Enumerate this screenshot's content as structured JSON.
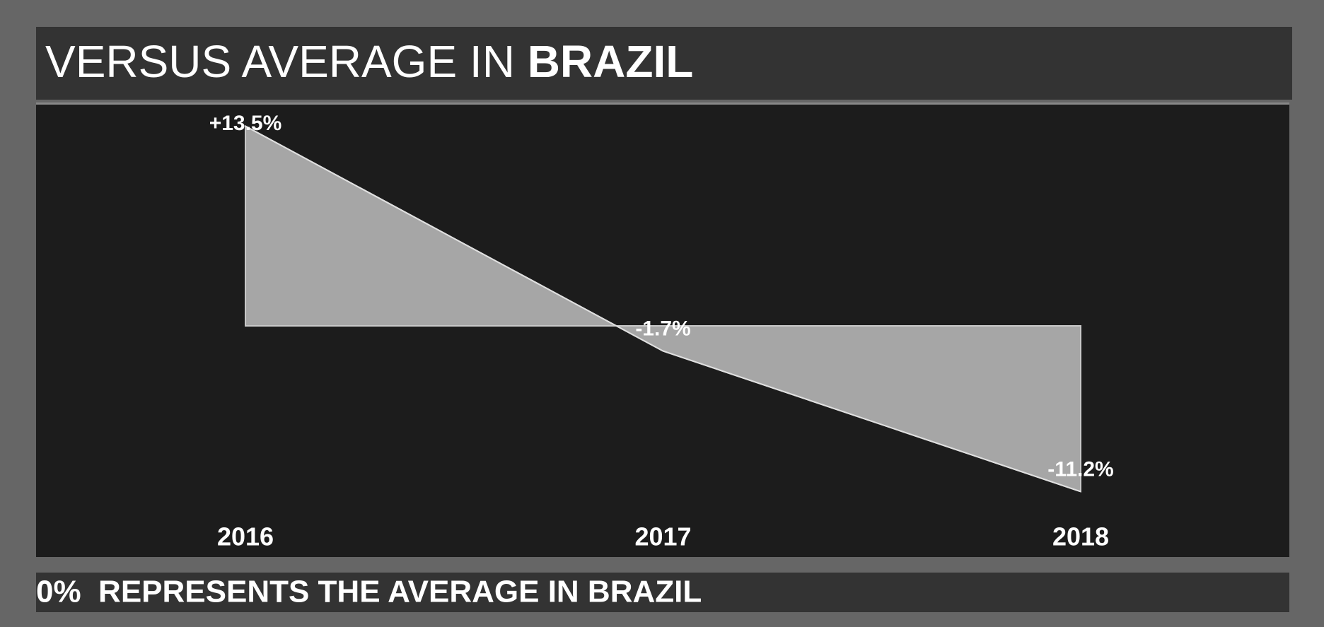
{
  "chart_data": {
    "type": "area",
    "title": "VERSUS AVERAGE IN",
    "title_emphasis": "BRAZIL",
    "categories": [
      "2016",
      "2017",
      "2018"
    ],
    "values": [
      13.5,
      -1.7,
      -11.2
    ],
    "value_labels": [
      "+13.5%",
      "-1.7%",
      "-11.2%"
    ],
    "color": "#a6a6a6",
    "ylim": [
      -14,
      14
    ],
    "note": "0%  REPRESENTS THE AVERAGE IN BRAZIL"
  }
}
